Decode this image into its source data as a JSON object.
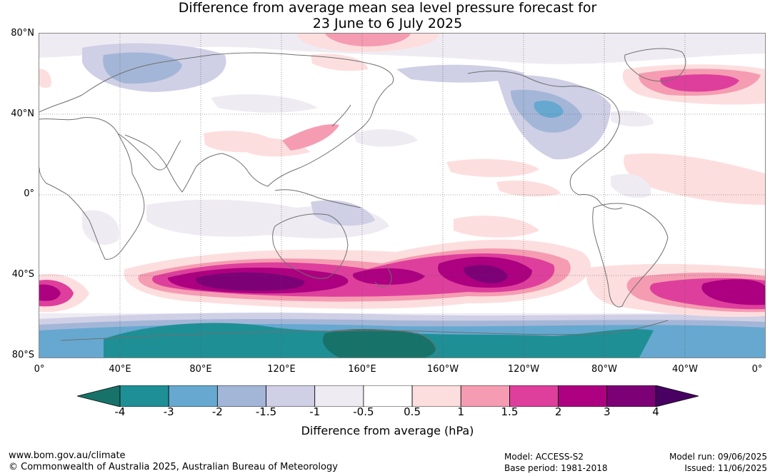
{
  "title": {
    "line1": "Difference from average mean sea level pressure forecast for",
    "line2": "23 June to 6 July 2025"
  },
  "lat_labels": [
    "80°N",
    "40°N",
    "0°",
    "40°S",
    "80°S"
  ],
  "lon_labels": [
    "0°",
    "40°E",
    "80°E",
    "120°E",
    "160°E",
    "160°W",
    "120°W",
    "80°W",
    "40°W",
    "0°"
  ],
  "colorbar": {
    "title": "Difference from average (hPa)",
    "ticks": [
      "-4",
      "-3",
      "-2",
      "-1.5",
      "-1",
      "-0.5",
      "0.5",
      "1",
      "1.5",
      "2",
      "3",
      "4"
    ],
    "colors": [
      "#17736a",
      "#1f8f96",
      "#66a8d0",
      "#a4b6d7",
      "#cfcfe6",
      "#efebf3",
      "#ffffff",
      "#fddede",
      "#f59cb2",
      "#de3f9c",
      "#ac0080",
      "#7c0076",
      "#480062"
    ]
  },
  "footer": {
    "website": "www.bom.gov.au/climate",
    "copyright": "© Commonwealth of Australia 2025, Australian Bureau of Meteorology",
    "model": "Model: ACCESS-S2",
    "base_period": "Base period: 1981-2018",
    "model_run": "Model run: 09/06/2025",
    "issued": "Issued: 11/06/2025"
  }
}
